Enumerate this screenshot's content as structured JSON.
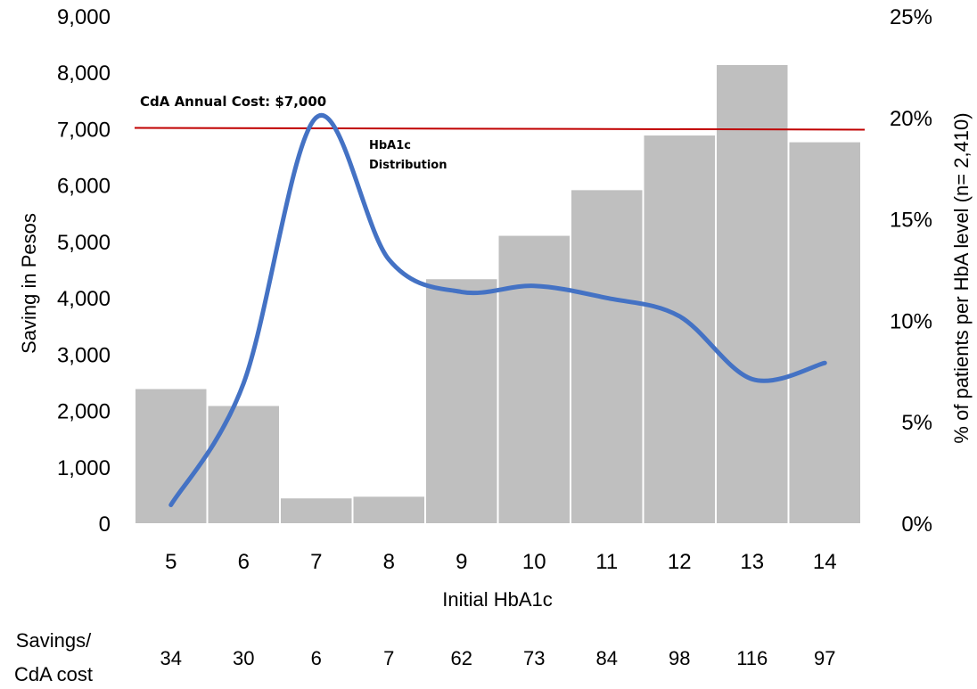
{
  "chart_data": {
    "type": "bar",
    "xlabel": "Initial HbA1c",
    "ylabel": "Saving in Pesos",
    "y2label": "% of patients per HbA level (n= 2,410)",
    "categories": [
      "5",
      "6",
      "7",
      "8",
      "9",
      "10",
      "11",
      "12",
      "13",
      "14"
    ],
    "ylim": [
      0,
      9000
    ],
    "y_ticks": [
      "0",
      "1,000",
      "2,000",
      "3,000",
      "4,000",
      "5,000",
      "6,000",
      "7,000",
      "8,000",
      "9,000"
    ],
    "y2lim": [
      0,
      25
    ],
    "y2_ticks": [
      "0%",
      "5%",
      "10%",
      "15%",
      "20%",
      "25%"
    ],
    "series": [
      {
        "name": "Saving in Pesos",
        "type": "bar",
        "axis": "left",
        "color": "#bfbfbf",
        "values": [
          2380,
          2080,
          440,
          470,
          4330,
          5100,
          5910,
          6880,
          8130,
          6760
        ]
      },
      {
        "name": "HbA1c Distribution",
        "type": "line",
        "axis": "right",
        "color": "#4472c4",
        "values": [
          0.9,
          6.9,
          20.0,
          13.0,
          11.4,
          11.7,
          11.1,
          10.2,
          7.1,
          7.9
        ]
      }
    ],
    "reference_line": {
      "label": "CdA Annual Cost: $7,000",
      "value": 7000,
      "color": "#c00000"
    },
    "annotation": {
      "line1": "HbA1c",
      "line2": "Distribution"
    },
    "ratio_row": {
      "label_line1": "Savings/",
      "label_line2": "CdA cost",
      "values": [
        "34",
        "30",
        "6",
        "7",
        "62",
        "73",
        "84",
        "98",
        "116",
        "97"
      ]
    },
    "grid": false,
    "legend": "none"
  }
}
